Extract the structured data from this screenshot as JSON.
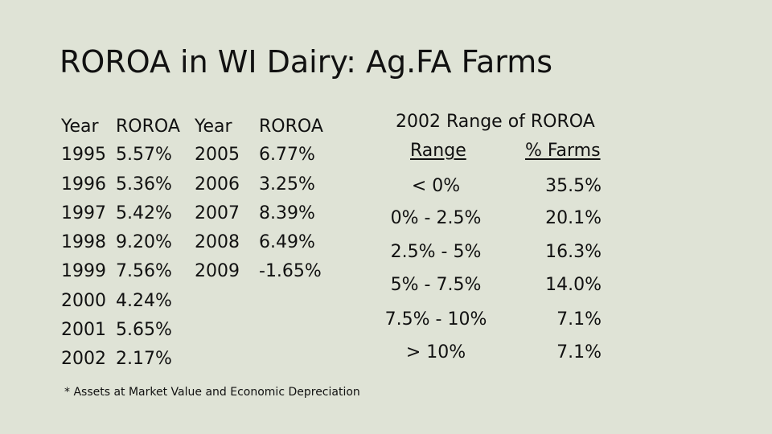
{
  "title": "ROROA in WI Dairy: Ag.FA Farms",
  "left_table": {
    "headers": [
      "Year",
      "ROROA",
      "Year",
      "ROROA"
    ],
    "col1": [
      {
        "year": "1995",
        "roroa": "5.57%"
      },
      {
        "year": "1996",
        "roroa": "5.36%"
      },
      {
        "year": "1997",
        "roroa": "5.42%"
      },
      {
        "year": "1998",
        "roroa": "9.20%"
      },
      {
        "year": "1999",
        "roroa": "7.56%"
      },
      {
        "year": "2000",
        "roroa": "4.24%"
      },
      {
        "year": "2001",
        "roroa": "5.65%"
      },
      {
        "year": "2002",
        "roroa": "2.17%"
      }
    ],
    "col2": [
      {
        "year": "2005",
        "roroa": "6.77%"
      },
      {
        "year": "2006",
        "roroa": "3.25%"
      },
      {
        "year": "2007",
        "roroa": "8.39%"
      },
      {
        "year": "2008",
        "roroa": "6.49%"
      },
      {
        "year": "2009",
        "roroa": "-1.65%"
      }
    ]
  },
  "range_table": {
    "title": "2002 Range of ROROA",
    "header_range": "Range",
    "header_farms": "% Farms",
    "rows": [
      {
        "range": "< 0%",
        "farms": "35.5%"
      },
      {
        "range": "0% - 2.5%",
        "farms": "20.1%"
      },
      {
        "range": "2.5% - 5%",
        "farms": "16.3%"
      },
      {
        "range": "5% - 7.5%",
        "farms": "14.0%"
      },
      {
        "range": "7.5% - 10%",
        "farms": "7.1%"
      },
      {
        "range": "> 10%",
        "farms": "7.1%"
      }
    ]
  },
  "footnote": "* Assets at Market Value and Economic Depreciation"
}
